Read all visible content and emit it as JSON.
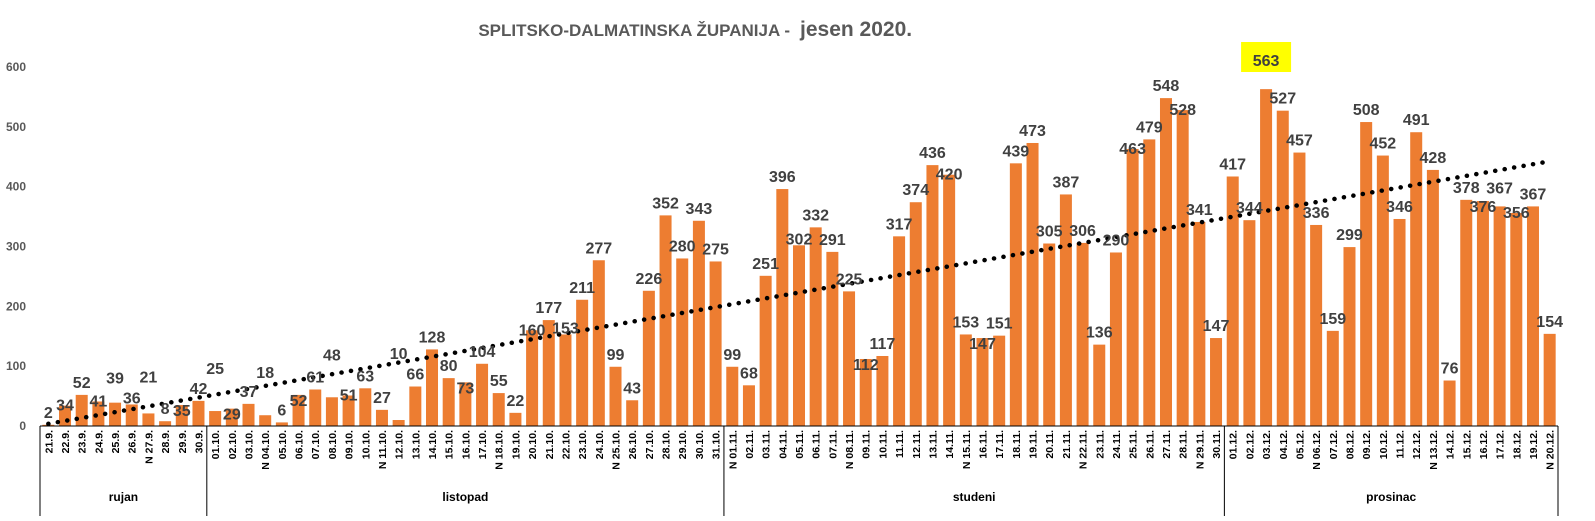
{
  "chart_data": {
    "type": "bar",
    "title_main": "SPLITSKO-DALMATINSKA ŽUPANIJA  -",
    "title_season": "jesen 2020.",
    "xlabel": "",
    "ylabel": "",
    "ylim": [
      0,
      600
    ],
    "yticks": [
      0,
      100,
      200,
      300,
      400,
      500,
      600
    ],
    "grid": false,
    "bar_color": "#ED7D31",
    "trendline": {
      "type": "linear",
      "style": "dotted",
      "color": "#000000"
    },
    "highlight": {
      "label": "563",
      "color": "#FFFF00"
    },
    "categories": [
      "21.9.",
      "22.9.",
      "23.9.",
      "24.9.",
      "25.9.",
      "26.9.",
      "N 27.9.",
      "28.9.",
      "29.9.",
      "30.9.",
      "01.10.",
      "02.10.",
      "03.10.",
      "N 04.10.",
      "05.10.",
      "06.10.",
      "07.10.",
      "08.10.",
      "09.10.",
      "10.10.",
      "N 11.10.",
      "12.10.",
      "13.10.",
      "14.10.",
      "15.10.",
      "16.10.",
      "17.10.",
      "N 18.10.",
      "19.10.",
      "20.10.",
      "21.10.",
      "22.10.",
      "23.10.",
      "24.10.",
      "N 25.10.",
      "26.10.",
      "27.10.",
      "28.10.",
      "29.10.",
      "30.10.",
      "31.10.",
      "N 01.11.",
      "02.11.",
      "03.11.",
      "04.11.",
      "05.11.",
      "06.11.",
      "07.11.",
      "N 08.11.",
      "09.11.",
      "10.11.",
      "11.11.",
      "12.11.",
      "13.11.",
      "14.11.",
      "N 15.11.",
      "16.11.",
      "17.11.",
      "18.11.",
      "19.11.",
      "20.11.",
      "21.11.",
      "N 22.11.",
      "23.11.",
      "24.11.",
      "25.11.",
      "26.11.",
      "27.11.",
      "28.11.",
      "N 29.11.",
      "30.11.",
      "01.12.",
      "02.12.",
      "03.12.",
      "04.12.",
      "05.12.",
      "N 06.12.",
      "07.12.",
      "08.12.",
      "09.12.",
      "10.12.",
      "11.12.",
      "12.12.",
      "N 13.12.",
      "14.12.",
      "15.12.",
      "16.12.",
      "17.12.",
      "18.12.",
      "19.12.",
      "N 20.12."
    ],
    "values": [
      2,
      34,
      52,
      41,
      39,
      36,
      21,
      8,
      35,
      42,
      25,
      29,
      37,
      18,
      6,
      52,
      61,
      48,
      51,
      63,
      27,
      10,
      66,
      128,
      80,
      73,
      104,
      55,
      22,
      160,
      177,
      153,
      211,
      277,
      99,
      43,
      226,
      352,
      280,
      343,
      275,
      99,
      68,
      251,
      396,
      302,
      332,
      291,
      225,
      112,
      117,
      317,
      374,
      436,
      420,
      153,
      147,
      151,
      439,
      473,
      305,
      387,
      306,
      136,
      290,
      463,
      479,
      548,
      528,
      341,
      147,
      417,
      344,
      563,
      527,
      457,
      336,
      159,
      299,
      508,
      452,
      346,
      491,
      428,
      76,
      378,
      376,
      367,
      356,
      367,
      154
    ],
    "months": [
      {
        "label": "rujan",
        "count": 10
      },
      {
        "label": "listopad",
        "count": 31
      },
      {
        "label": "studeni",
        "count": 30
      },
      {
        "label": "prosinac",
        "count": 20
      }
    ]
  }
}
